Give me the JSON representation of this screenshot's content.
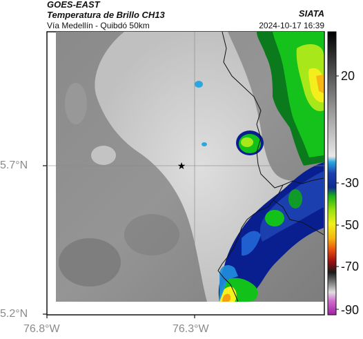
{
  "header": {
    "satellite": "GOES-EAST",
    "product": "Temperatura de Brillo CH13",
    "route": "Vía Medellín - Quibdó 50km",
    "org": "SIATA",
    "datetime": "2024-10-17 16:39"
  },
  "map": {
    "lat_ticks": [
      "5.7°N",
      "5.2°N"
    ],
    "lon_ticks": [
      "76.8°W",
      "76.3°W"
    ],
    "lat_range": [
      5.2,
      5.95
    ],
    "lon_range": [
      -76.8,
      -76.05
    ],
    "marker": {
      "symbol": "★",
      "lat": 5.7,
      "lon": -76.32
    },
    "colors": {
      "land_gray": "#8c8c8c",
      "cloud_light": "#dcdcdc",
      "cold_green": "#12c21a",
      "cold_blue": "#0a1f8f",
      "cold_yellow": "#f7f21b"
    }
  },
  "colorbar": {
    "ticks": [
      "20",
      "-30",
      "-50",
      "-70",
      "-90"
    ]
  }
}
